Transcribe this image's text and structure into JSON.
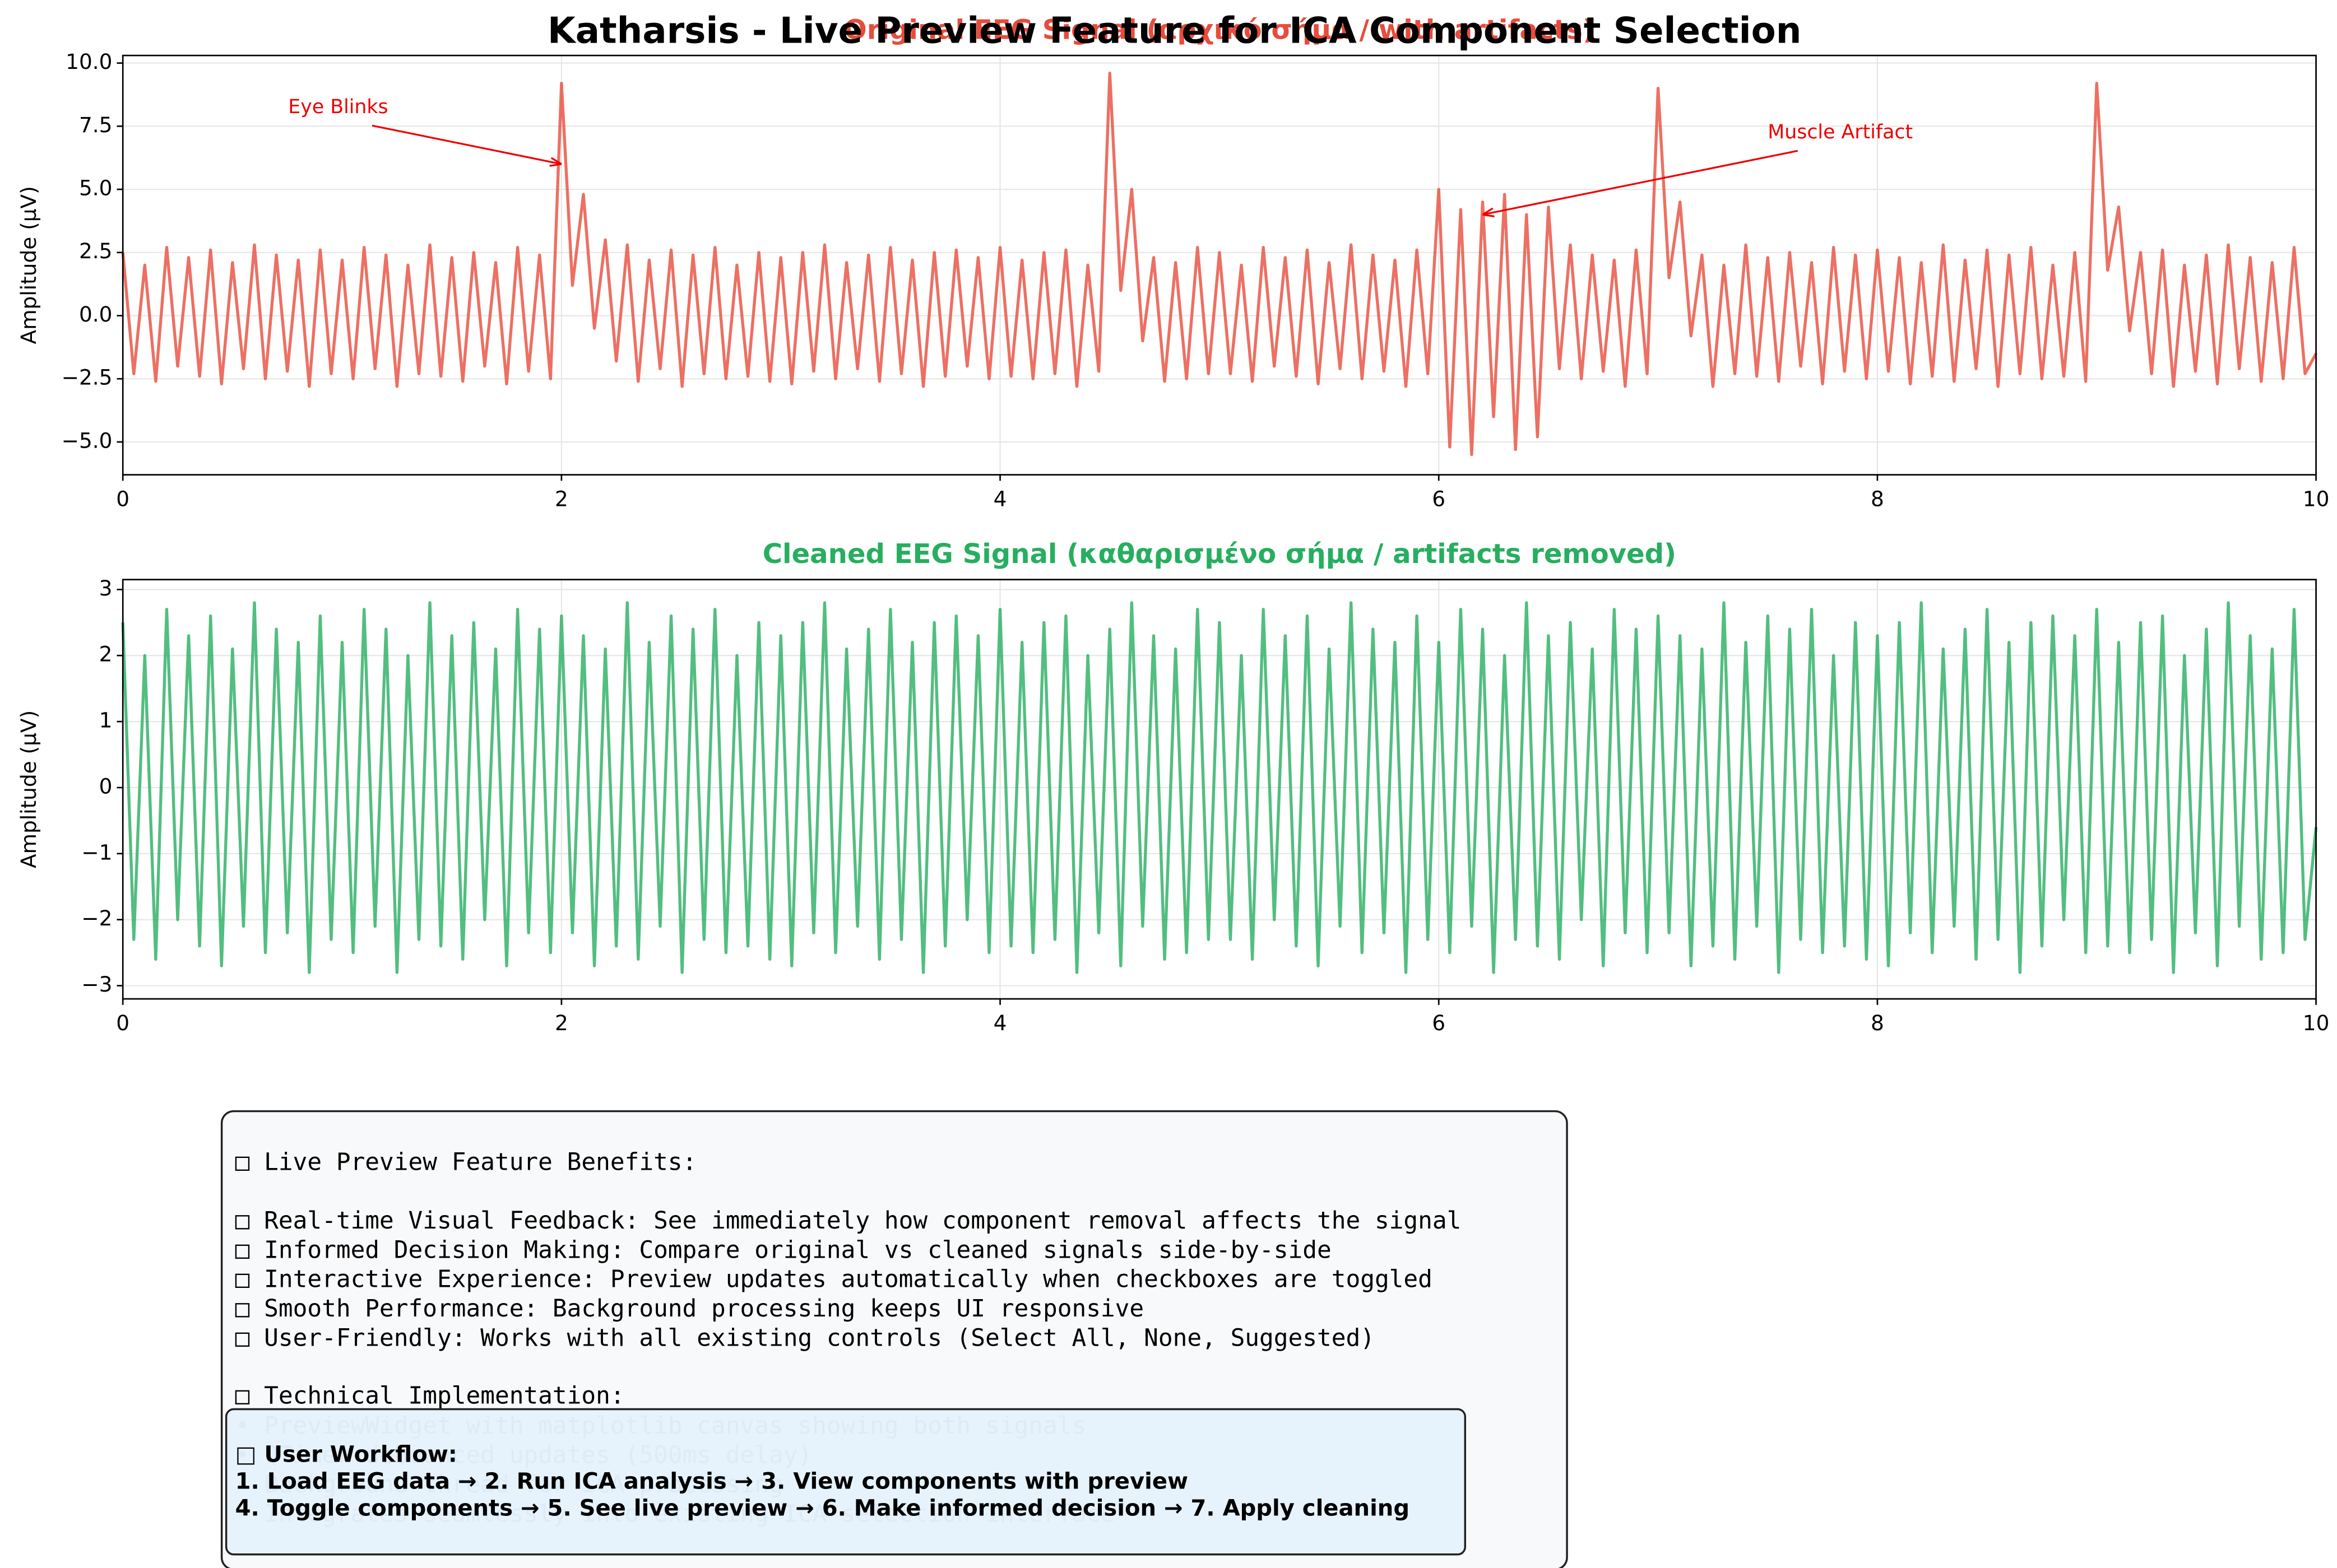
{
  "title": "Katharsis - Live Preview Feature for ICA Component Selection",
  "chart_data": [
    {
      "type": "line",
      "title": "Original EEG Signal (αρχικό σήμα / with artifacts)",
      "ylabel": "Amplitude (μV)",
      "annotations": [
        "Eye Blinks",
        "Muscle Artifact"
      ],
      "xlim": [
        0,
        10
      ],
      "xticks": [
        0,
        2,
        4,
        6,
        8,
        10
      ],
      "ylim": [
        -6.3,
        10.3
      ],
      "yticks": [
        {
          "value": -5,
          "label": "−5.0"
        },
        {
          "value": -2.5,
          "label": "−2.5"
        },
        {
          "value": 0,
          "label": "0.0"
        },
        {
          "value": 2.5,
          "label": "2.5"
        },
        {
          "value": 5,
          "label": "5.0"
        },
        {
          "value": 7.5,
          "label": "7.5"
        },
        {
          "value": 10,
          "label": "10.0"
        }
      ],
      "grid": true,
      "x": [
        0,
        0.05,
        0.1,
        0.15,
        0.2,
        0.25,
        0.3,
        0.35,
        0.4,
        0.45,
        0.5,
        0.55,
        0.6,
        0.65,
        0.7,
        0.75,
        0.8,
        0.85,
        0.9,
        0.95,
        1,
        1.05,
        1.1,
        1.15,
        1.2,
        1.25,
        1.3,
        1.35,
        1.4,
        1.45,
        1.5,
        1.55,
        1.6,
        1.65,
        1.7,
        1.75,
        1.8,
        1.85,
        1.9,
        1.95,
        2,
        2.05,
        2.1,
        2.15,
        2.2,
        2.25,
        2.3,
        2.35,
        2.4,
        2.45,
        2.5,
        2.55,
        2.6,
        2.65,
        2.7,
        2.75,
        2.8,
        2.85,
        2.9,
        2.95,
        3,
        3.05,
        3.1,
        3.15,
        3.2,
        3.25,
        3.3,
        3.35,
        3.4,
        3.45,
        3.5,
        3.55,
        3.6,
        3.65,
        3.7,
        3.75,
        3.8,
        3.85,
        3.9,
        3.95,
        4,
        4.05,
        4.1,
        4.15,
        4.2,
        4.25,
        4.3,
        4.35,
        4.4,
        4.45,
        4.5,
        4.55,
        4.6,
        4.65,
        4.7,
        4.75,
        4.8,
        4.85,
        4.9,
        4.95,
        5,
        5.05,
        5.1,
        5.15,
        5.2,
        5.25,
        5.3,
        5.35,
        5.4,
        5.45,
        5.5,
        5.55,
        5.6,
        5.65,
        5.7,
        5.75,
        5.8,
        5.85,
        5.9,
        5.95,
        6,
        6.05,
        6.1,
        6.15,
        6.2,
        6.25,
        6.3,
        6.35,
        6.4,
        6.45,
        6.5,
        6.55,
        6.6,
        6.65,
        6.7,
        6.75,
        6.8,
        6.85,
        6.9,
        6.95,
        7,
        7.05,
        7.1,
        7.15,
        7.2,
        7.25,
        7.3,
        7.35,
        7.4,
        7.45,
        7.5,
        7.55,
        7.6,
        7.65,
        7.7,
        7.75,
        7.8,
        7.85,
        7.9,
        7.95,
        8,
        8.05,
        8.1,
        8.15,
        8.2,
        8.25,
        8.3,
        8.35,
        8.4,
        8.45,
        8.5,
        8.55,
        8.6,
        8.65,
        8.7,
        8.75,
        8.8,
        8.85,
        8.9,
        8.95,
        9,
        9.05,
        9.1,
        9.15,
        9.2,
        9.25,
        9.3,
        9.35,
        9.4,
        9.45,
        9.5,
        9.55,
        9.6,
        9.65,
        9.7,
        9.75,
        9.8,
        9.85,
        9.9,
        9.95,
        10
      ],
      "series": [
        {
          "color": "#e74c3c",
          "values": [
            2.5,
            -2.3,
            2.0,
            -2.6,
            2.7,
            -2.0,
            2.3,
            -2.4,
            2.6,
            -2.7,
            2.1,
            -2.1,
            2.8,
            -2.5,
            2.4,
            -2.2,
            2.2,
            -2.8,
            2.6,
            -2.3,
            2.2,
            -2.5,
            2.7,
            -2.1,
            2.4,
            -2.8,
            2.0,
            -2.3,
            2.8,
            -2.4,
            2.3,
            -2.6,
            2.5,
            -2.0,
            2.1,
            -2.7,
            2.7,
            -2.2,
            2.4,
            -2.5,
            9.2,
            1.2,
            4.8,
            -0.5,
            3.0,
            -1.8,
            2.8,
            -2.6,
            2.2,
            -2.1,
            2.6,
            -2.8,
            2.4,
            -2.3,
            2.7,
            -2.5,
            2.0,
            -2.4,
            2.5,
            -2.6,
            2.3,
            -2.7,
            2.5,
            -2.2,
            2.8,
            -2.5,
            2.1,
            -2.1,
            2.4,
            -2.6,
            2.7,
            -2.3,
            2.2,
            -2.8,
            2.5,
            -2.4,
            2.6,
            -2.0,
            2.3,
            -2.5,
            2.7,
            -2.4,
            2.2,
            -2.5,
            2.5,
            -2.3,
            2.6,
            -2.8,
            2.0,
            -2.2,
            9.6,
            1.0,
            5.0,
            -1.0,
            2.3,
            -2.6,
            2.1,
            -2.5,
            2.7,
            -2.3,
            2.5,
            -2.3,
            2.0,
            -2.6,
            2.7,
            -2.0,
            2.3,
            -2.4,
            2.6,
            -2.7,
            2.1,
            -2.1,
            2.8,
            -2.5,
            2.4,
            -2.2,
            2.2,
            -2.8,
            2.6,
            -2.3,
            5.0,
            -5.2,
            4.2,
            -5.5,
            4.5,
            -4.0,
            4.8,
            -5.3,
            4.0,
            -4.8,
            4.3,
            -2.1,
            2.8,
            -2.5,
            2.4,
            -2.2,
            2.2,
            -2.8,
            2.6,
            -2.3,
            9.0,
            1.5,
            4.5,
            -0.8,
            2.4,
            -2.8,
            2.0,
            -2.3,
            2.8,
            -2.4,
            2.3,
            -2.6,
            2.5,
            -2.0,
            2.1,
            -2.7,
            2.7,
            -2.2,
            2.4,
            -2.5,
            2.6,
            -2.2,
            2.3,
            -2.7,
            2.1,
            -2.4,
            2.8,
            -2.6,
            2.2,
            -2.1,
            2.6,
            -2.8,
            2.4,
            -2.3,
            2.7,
            -2.5,
            2.0,
            -2.4,
            2.5,
            -2.6,
            9.2,
            1.8,
            4.3,
            -0.6,
            2.5,
            -2.3,
            2.6,
            -2.8,
            2.0,
            -2.2,
            2.4,
            -2.7,
            2.8,
            -2.1,
            2.3,
            -2.6,
            2.1,
            -2.5,
            2.7,
            -2.3,
            -1.5
          ]
        }
      ]
    },
    {
      "type": "line",
      "title": "Cleaned EEG Signal (καθαρισμένο σήμα / artifacts removed)",
      "ylabel": "Amplitude (μV)",
      "xlim": [
        0,
        10
      ],
      "xticks": [
        0,
        2,
        4,
        6,
        8,
        10
      ],
      "ylim": [
        -3.2,
        3.15
      ],
      "yticks": [
        {
          "value": -3,
          "label": "−3"
        },
        {
          "value": -2,
          "label": "−2"
        },
        {
          "value": -1,
          "label": "−1"
        },
        0,
        1,
        2,
        3
      ],
      "grid": true,
      "x": [
        0,
        0.05,
        0.1,
        0.15,
        0.2,
        0.25,
        0.3,
        0.35,
        0.4,
        0.45,
        0.5,
        0.55,
        0.6,
        0.65,
        0.7,
        0.75,
        0.8,
        0.85,
        0.9,
        0.95,
        1,
        1.05,
        1.1,
        1.15,
        1.2,
        1.25,
        1.3,
        1.35,
        1.4,
        1.45,
        1.5,
        1.55,
        1.6,
        1.65,
        1.7,
        1.75,
        1.8,
        1.85,
        1.9,
        1.95,
        2,
        2.05,
        2.1,
        2.15,
        2.2,
        2.25,
        2.3,
        2.35,
        2.4,
        2.45,
        2.5,
        2.55,
        2.6,
        2.65,
        2.7,
        2.75,
        2.8,
        2.85,
        2.9,
        2.95,
        3,
        3.05,
        3.1,
        3.15,
        3.2,
        3.25,
        3.3,
        3.35,
        3.4,
        3.45,
        3.5,
        3.55,
        3.6,
        3.65,
        3.7,
        3.75,
        3.8,
        3.85,
        3.9,
        3.95,
        4,
        4.05,
        4.1,
        4.15,
        4.2,
        4.25,
        4.3,
        4.35,
        4.4,
        4.45,
        4.5,
        4.55,
        4.6,
        4.65,
        4.7,
        4.75,
        4.8,
        4.85,
        4.9,
        4.95,
        5,
        5.05,
        5.1,
        5.15,
        5.2,
        5.25,
        5.3,
        5.35,
        5.4,
        5.45,
        5.5,
        5.55,
        5.6,
        5.65,
        5.7,
        5.75,
        5.8,
        5.85,
        5.9,
        5.95,
        6,
        6.05,
        6.1,
        6.15,
        6.2,
        6.25,
        6.3,
        6.35,
        6.4,
        6.45,
        6.5,
        6.55,
        6.6,
        6.65,
        6.7,
        6.75,
        6.8,
        6.85,
        6.9,
        6.95,
        7,
        7.05,
        7.1,
        7.15,
        7.2,
        7.25,
        7.3,
        7.35,
        7.4,
        7.45,
        7.5,
        7.55,
        7.6,
        7.65,
        7.7,
        7.75,
        7.8,
        7.85,
        7.9,
        7.95,
        8,
        8.05,
        8.1,
        8.15,
        8.2,
        8.25,
        8.3,
        8.35,
        8.4,
        8.45,
        8.5,
        8.55,
        8.6,
        8.65,
        8.7,
        8.75,
        8.8,
        8.85,
        8.9,
        8.95,
        9,
        9.05,
        9.1,
        9.15,
        9.2,
        9.25,
        9.3,
        9.35,
        9.4,
        9.45,
        9.5,
        9.55,
        9.6,
        9.65,
        9.7,
        9.75,
        9.8,
        9.85,
        9.9,
        9.95,
        10
      ],
      "series": [
        {
          "color": "#27ae60",
          "values": [
            2.5,
            -2.3,
            2.0,
            -2.6,
            2.7,
            -2.0,
            2.3,
            -2.4,
            2.6,
            -2.7,
            2.1,
            -2.1,
            2.8,
            -2.5,
            2.4,
            -2.2,
            2.2,
            -2.8,
            2.6,
            -2.3,
            2.2,
            -2.5,
            2.7,
            -2.1,
            2.4,
            -2.8,
            2.0,
            -2.3,
            2.8,
            -2.4,
            2.3,
            -2.6,
            2.5,
            -2.0,
            2.1,
            -2.7,
            2.7,
            -2.2,
            2.4,
            -2.5,
            2.6,
            -2.2,
            2.3,
            -2.7,
            2.1,
            -2.4,
            2.8,
            -2.6,
            2.2,
            -2.1,
            2.6,
            -2.8,
            2.4,
            -2.3,
            2.7,
            -2.5,
            2.0,
            -2.4,
            2.5,
            -2.6,
            2.3,
            -2.7,
            2.5,
            -2.2,
            2.8,
            -2.5,
            2.1,
            -2.1,
            2.4,
            -2.6,
            2.7,
            -2.3,
            2.2,
            -2.8,
            2.5,
            -2.4,
            2.6,
            -2.0,
            2.3,
            -2.5,
            2.7,
            -2.4,
            2.2,
            -2.5,
            2.5,
            -2.3,
            2.6,
            -2.8,
            2.0,
            -2.2,
            2.4,
            -2.7,
            2.8,
            -2.1,
            2.3,
            -2.6,
            2.1,
            -2.5,
            2.7,
            -2.3,
            2.5,
            -2.3,
            2.0,
            -2.6,
            2.7,
            -2.0,
            2.3,
            -2.4,
            2.6,
            -2.7,
            2.1,
            -2.1,
            2.8,
            -2.5,
            2.4,
            -2.2,
            2.2,
            -2.8,
            2.6,
            -2.3,
            2.2,
            -2.5,
            2.7,
            -2.1,
            2.4,
            -2.8,
            2.0,
            -2.3,
            2.8,
            -2.4,
            2.3,
            -2.6,
            2.5,
            -2.0,
            2.1,
            -2.7,
            2.7,
            -2.2,
            2.4,
            -2.5,
            2.6,
            -2.2,
            2.3,
            -2.7,
            2.1,
            -2.4,
            2.8,
            -2.6,
            2.2,
            -2.1,
            2.6,
            -2.8,
            2.4,
            -2.3,
            2.7,
            -2.5,
            2.0,
            -2.4,
            2.5,
            -2.6,
            2.3,
            -2.7,
            2.5,
            -2.2,
            2.8,
            -2.5,
            2.1,
            -2.1,
            2.4,
            -2.6,
            2.7,
            -2.3,
            2.2,
            -2.8,
            2.5,
            -2.4,
            2.6,
            -2.0,
            2.3,
            -2.5,
            2.7,
            -2.4,
            2.2,
            -2.5,
            2.5,
            -2.3,
            2.6,
            -2.8,
            2.0,
            -2.2,
            2.4,
            -2.7,
            2.8,
            -2.1,
            2.3,
            -2.6,
            2.1,
            -2.5,
            2.7,
            -2.3,
            -0.6
          ]
        }
      ]
    }
  ],
  "info_box": {
    "heading": "□ Live Preview Feature Benefits:",
    "items": [
      "□ Real-time Visual Feedback: See immediately how component removal affects the signal",
      "□ Informed Decision Making: Compare original vs cleaned signals side-by-side",
      "□ Interactive Experience: Preview updates automatically when checkboxes are toggled",
      "□ Smooth Performance: Background processing keeps UI responsive",
      "□ User-Friendly: Works with all existing controls (Select All, None, Suggested)"
    ],
    "tech_heading": "□ Technical Implementation:",
    "tech_items": [
      "• PreviewWidget with matplotlib canvas showing both signals",
      "• QTimer-debounced updates (500ms delay)",
      "• Background thread for ICA processing",
      "• Integrates seamlessly into existing ICA selection interface"
    ]
  },
  "workflow_box": {
    "heading": "□ User Workflow:",
    "lines": [
      "1. Load EEG data → 2. Run ICA analysis → 3. View components with preview",
      "4. Toggle components → 5. See live preview → 6. Make informed decision → 7. Apply cleaning"
    ]
  }
}
